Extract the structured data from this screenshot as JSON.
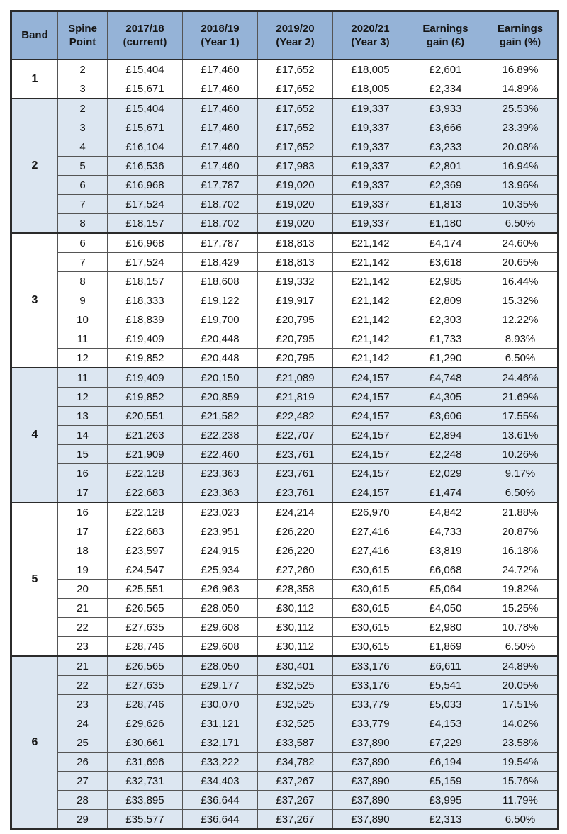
{
  "colors": {
    "header_bg": "#95B3D7",
    "shaded_row_bg": "#DCE6F1",
    "border": "#2b2b2b",
    "text": "#151515"
  },
  "table": {
    "columns": [
      "Band",
      "Spine Point",
      "2017/18 (current)",
      "2018/19 (Year 1)",
      "2019/20 (Year 2)",
      "2020/21 (Year 3)",
      "Earnings gain (£)",
      "Earnings gain (%)"
    ],
    "groups": [
      {
        "band": "1",
        "shaded": false,
        "rows": [
          [
            "2",
            "£15,404",
            "£17,460",
            "£17,652",
            "£18,005",
            "£2,601",
            "16.89%"
          ],
          [
            "3",
            "£15,671",
            "£17,460",
            "£17,652",
            "£18,005",
            "£2,334",
            "14.89%"
          ]
        ]
      },
      {
        "band": "2",
        "shaded": true,
        "rows": [
          [
            "2",
            "£15,404",
            "£17,460",
            "£17,652",
            "£19,337",
            "£3,933",
            "25.53%"
          ],
          [
            "3",
            "£15,671",
            "£17,460",
            "£17,652",
            "£19,337",
            "£3,666",
            "23.39%"
          ],
          [
            "4",
            "£16,104",
            "£17,460",
            "£17,652",
            "£19,337",
            "£3,233",
            "20.08%"
          ],
          [
            "5",
            "£16,536",
            "£17,460",
            "£17,983",
            "£19,337",
            "£2,801",
            "16.94%"
          ],
          [
            "6",
            "£16,968",
            "£17,787",
            "£19,020",
            "£19,337",
            "£2,369",
            "13.96%"
          ],
          [
            "7",
            "£17,524",
            "£18,702",
            "£19,020",
            "£19,337",
            "£1,813",
            "10.35%"
          ],
          [
            "8",
            "£18,157",
            "£18,702",
            "£19,020",
            "£19,337",
            "£1,180",
            "6.50%"
          ]
        ]
      },
      {
        "band": "3",
        "shaded": false,
        "rows": [
          [
            "6",
            "£16,968",
            "£17,787",
            "£18,813",
            "£21,142",
            "£4,174",
            "24.60%"
          ],
          [
            "7",
            "£17,524",
            "£18,429",
            "£18,813",
            "£21,142",
            "£3,618",
            "20.65%"
          ],
          [
            "8",
            "£18,157",
            "£18,608",
            "£19,332",
            "£21,142",
            "£2,985",
            "16.44%"
          ],
          [
            "9",
            "£18,333",
            "£19,122",
            "£19,917",
            "£21,142",
            "£2,809",
            "15.32%"
          ],
          [
            "10",
            "£18,839",
            "£19,700",
            "£20,795",
            "£21,142",
            "£2,303",
            "12.22%"
          ],
          [
            "11",
            "£19,409",
            "£20,448",
            "£20,795",
            "£21,142",
            "£1,733",
            "8.93%"
          ],
          [
            "12",
            "£19,852",
            "£20,448",
            "£20,795",
            "£21,142",
            "£1,290",
            "6.50%"
          ]
        ]
      },
      {
        "band": "4",
        "shaded": true,
        "rows": [
          [
            "11",
            "£19,409",
            "£20,150",
            "£21,089",
            "£24,157",
            "£4,748",
            "24.46%"
          ],
          [
            "12",
            "£19,852",
            "£20,859",
            "£21,819",
            "£24,157",
            "£4,305",
            "21.69%"
          ],
          [
            "13",
            "£20,551",
            "£21,582",
            "£22,482",
            "£24,157",
            "£3,606",
            "17.55%"
          ],
          [
            "14",
            "£21,263",
            "£22,238",
            "£22,707",
            "£24,157",
            "£2,894",
            "13.61%"
          ],
          [
            "15",
            "£21,909",
            "£22,460",
            "£23,761",
            "£24,157",
            "£2,248",
            "10.26%"
          ],
          [
            "16",
            "£22,128",
            "£23,363",
            "£23,761",
            "£24,157",
            "£2,029",
            "9.17%"
          ],
          [
            "17",
            "£22,683",
            "£23,363",
            "£23,761",
            "£24,157",
            "£1,474",
            "6.50%"
          ]
        ]
      },
      {
        "band": "5",
        "shaded": false,
        "rows": [
          [
            "16",
            "£22,128",
            "£23,023",
            "£24,214",
            "£26,970",
            "£4,842",
            "21.88%"
          ],
          [
            "17",
            "£22,683",
            "£23,951",
            "£26,220",
            "£27,416",
            "£4,733",
            "20.87%"
          ],
          [
            "18",
            "£23,597",
            "£24,915",
            "£26,220",
            "£27,416",
            "£3,819",
            "16.18%"
          ],
          [
            "19",
            "£24,547",
            "£25,934",
            "£27,260",
            "£30,615",
            "£6,068",
            "24.72%"
          ],
          [
            "20",
            "£25,551",
            "£26,963",
            "£28,358",
            "£30,615",
            "£5,064",
            "19.82%"
          ],
          [
            "21",
            "£26,565",
            "£28,050",
            "£30,112",
            "£30,615",
            "£4,050",
            "15.25%"
          ],
          [
            "22",
            "£27,635",
            "£29,608",
            "£30,112",
            "£30,615",
            "£2,980",
            "10.78%"
          ],
          [
            "23",
            "£28,746",
            "£29,608",
            "£30,112",
            "£30,615",
            "£1,869",
            "6.50%"
          ]
        ]
      },
      {
        "band": "6",
        "shaded": true,
        "rows": [
          [
            "21",
            "£26,565",
            "£28,050",
            "£30,401",
            "£33,176",
            "£6,611",
            "24.89%"
          ],
          [
            "22",
            "£27,635",
            "£29,177",
            "£32,525",
            "£33,176",
            "£5,541",
            "20.05%"
          ],
          [
            "23",
            "£28,746",
            "£30,070",
            "£32,525",
            "£33,779",
            "£5,033",
            "17.51%"
          ],
          [
            "24",
            "£29,626",
            "£31,121",
            "£32,525",
            "£33,779",
            "£4,153",
            "14.02%"
          ],
          [
            "25",
            "£30,661",
            "£32,171",
            "£33,587",
            "£37,890",
            "£7,229",
            "23.58%"
          ],
          [
            "26",
            "£31,696",
            "£33,222",
            "£34,782",
            "£37,890",
            "£6,194",
            "19.54%"
          ],
          [
            "27",
            "£32,731",
            "£34,403",
            "£37,267",
            "£37,890",
            "£5,159",
            "15.76%"
          ],
          [
            "28",
            "£33,895",
            "£36,644",
            "£37,267",
            "£37,890",
            "£3,995",
            "11.79%"
          ],
          [
            "29",
            "£35,577",
            "£36,644",
            "£37,267",
            "£37,890",
            "£2,313",
            "6.50%"
          ]
        ]
      }
    ]
  }
}
